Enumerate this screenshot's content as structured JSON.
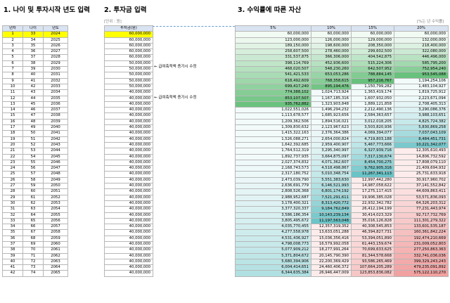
{
  "titles": {
    "section1": "1. 나이 및 투자시작 년도 입력",
    "section2": "2. 투자금 입력",
    "section3": "3. 수익률에 따른 자산"
  },
  "units": {
    "investment": "[단위 : 원]",
    "rate": "[%는 년 수익률]"
  },
  "table1": {
    "headers": [
      "년차",
      "나이",
      "년도"
    ],
    "rows": [
      [
        1,
        33,
        2024
      ],
      [
        2,
        34,
        2025
      ],
      [
        3,
        35,
        2026
      ],
      [
        4,
        36,
        2027
      ],
      [
        5,
        37,
        2028
      ],
      [
        6,
        38,
        2029
      ],
      [
        7,
        39,
        2030
      ],
      [
        8,
        40,
        2031
      ],
      [
        9,
        41,
        2032
      ],
      [
        10,
        42,
        2033
      ],
      [
        11,
        43,
        2034
      ],
      [
        12,
        44,
        2035
      ],
      [
        13,
        45,
        2036
      ],
      [
        14,
        46,
        2037
      ],
      [
        15,
        47,
        2038
      ],
      [
        16,
        48,
        2039
      ],
      [
        17,
        49,
        2040
      ],
      [
        18,
        50,
        2041
      ],
      [
        19,
        51,
        2042
      ],
      [
        20,
        52,
        2043
      ],
      [
        21,
        53,
        2044
      ],
      [
        22,
        54,
        2045
      ],
      [
        23,
        55,
        2046
      ],
      [
        24,
        56,
        2047
      ],
      [
        25,
        57,
        2048
      ],
      [
        26,
        58,
        2049
      ],
      [
        27,
        59,
        2050
      ],
      [
        28,
        60,
        2051
      ],
      [
        29,
        61,
        2052
      ],
      [
        30,
        62,
        2053
      ],
      [
        31,
        63,
        2054
      ],
      [
        32,
        64,
        2055
      ],
      [
        33,
        65,
        2056
      ],
      [
        34,
        66,
        2057
      ],
      [
        35,
        67,
        2058
      ],
      [
        36,
        68,
        2059
      ],
      [
        37,
        69,
        2060
      ],
      [
        38,
        70,
        2061
      ],
      [
        39,
        71,
        2062
      ],
      [
        40,
        72,
        2063
      ],
      [
        41,
        73,
        2064
      ],
      [
        42,
        74,
        2065
      ]
    ]
  },
  "table2": {
    "header": "투자금(원)",
    "values": [
      "60,000,000",
      "60,000,000",
      "60,000,000",
      "60,000,000",
      "60,000,000",
      "50,000,000",
      "50,000,000",
      "50,000,000",
      "50,000,000",
      "50,000,000",
      "40,000,000",
      "40,000,000",
      "40,000,000",
      "40,000,000",
      "40,000,000",
      "40,000,000",
      "40,000,000",
      "40,000,000",
      "40,000,000",
      "40,000,000",
      "40,000,000",
      "40,000,000",
      "40,000,000",
      "40,000,000",
      "40,000,000",
      "40,000,000",
      "40,000,000",
      "40,000,000",
      "40,000,000",
      "40,000,000",
      "40,000,000",
      "40,000,000",
      "40,000,000",
      "40,000,000",
      "40,000,000",
      "40,000,000",
      "40,000,000",
      "40,000,000",
      "40,000,000",
      "40,000,000",
      "40,000,000",
      "40,000,000"
    ]
  },
  "notes": {
    "note1": "← 급여축적액 증가시 수정",
    "note2": "← 급여축적액 증가시 수정"
  },
  "table3": {
    "headers": [
      "5%",
      "10%",
      "15%",
      "20%"
    ],
    "rows": [
      [
        "60,000,000",
        "60,000,000",
        "60,000,000",
        "60,000,000"
      ],
      [
        "123,000,000",
        "126,000,000",
        "129,000,000",
        "132,000,000"
      ],
      [
        "189,150,000",
        "198,600,000",
        "208,350,000",
        "218,400,000"
      ],
      [
        "258,607,500",
        "278,460,000",
        "299,602,500",
        "322,080,000"
      ],
      [
        "331,537,875",
        "366,306,000",
        "404,542,875",
        "446,496,000"
      ],
      [
        "398,114,769",
        "452,936,600",
        "515,224,306",
        "585,795,200"
      ],
      [
        "468,020,507",
        "548,230,260",
        "642,507,952",
        "752,954,240"
      ],
      [
        "541,421,533",
        "653,053,286",
        "788,884,145",
        "953,545,088"
      ],
      [
        "618,492,609",
        "768,358,615",
        "957,216,767",
        "1,194,254,106"
      ],
      [
        "699,417,240",
        "895,194,476",
        "1,150,799,282",
        "1,483,104,927"
      ],
      [
        "774,388,102",
        "1,024,713,924",
        "1,363,419,174",
        "1,819,725,912"
      ],
      [
        "853,107,507",
        "1,167,185,316",
        "1,607,932,050",
        "2,223,671,094"
      ],
      [
        "935,762,882",
        "1,323,903,848",
        "1,889,121,858",
        "2,708,405,313"
      ],
      [
        "1,022,551,026",
        "1,496,294,232",
        "2,212,490,136",
        "3,290,086,376"
      ],
      [
        "1,113,678,577",
        "1,685,923,656",
        "2,584,363,657",
        "3,988,103,651"
      ],
      [
        "1,209,362,506",
        "1,894,516,021",
        "3,012,018,205",
        "4,825,724,382"
      ],
      [
        "1,309,830,632",
        "2,123,967,623",
        "3,503,820,936",
        "5,830,869,258"
      ],
      [
        "1,415,322,163",
        "2,376,364,386",
        "4,069,394,077",
        "7,037,043,109"
      ],
      [
        "1,526,088,271",
        "2,654,000,824",
        "4,719,803,188",
        "8,484,451,731"
      ],
      [
        "1,642,392,685",
        "2,959,400,907",
        "5,467,773,666",
        "10,221,342,077"
      ],
      [
        "1,764,512,319",
        "3,295,340,997",
        "6,327,939,716",
        "12,305,610,493"
      ],
      [
        "1,892,737,935",
        "3,664,875,097",
        "7,317,130,674",
        "14,806,732,592"
      ],
      [
        "2,027,374,832",
        "4,071,362,607",
        "8,454,700,275",
        "17,808,079,110"
      ],
      [
        "2,168,743,573",
        "4,518,498,867",
        "9,762,905,316",
        "21,409,694,932"
      ],
      [
        "2,317,180,752",
        "5,010,348,754",
        "11,267,341,113",
        "25,731,633,918"
      ],
      [
        "2,473,039,790",
        "5,551,383,630",
        "12,997,442,280",
        "30,917,960,702"
      ],
      [
        "2,636,691,779",
        "6,146,521,993",
        "14,987,058,622",
        "37,141,552,842"
      ],
      [
        "2,808,526,368",
        "6,801,174,192",
        "17,275,117,415",
        "44,609,863,411"
      ],
      [
        "2,988,952,687",
        "7,521,291,611",
        "19,906,385,028",
        "53,571,836,093"
      ],
      [
        "3,178,400,321",
        "8,313,420,772",
        "22,932,342,782",
        "64,326,203,312"
      ],
      [
        "3,377,320,337",
        "9,184,762,849",
        "26,412,194,199",
        "77,231,443,974"
      ],
      [
        "3,586,186,354",
        "10,143,239,134",
        "30,414,023,329",
        "92,717,732,769"
      ],
      [
        "3,805,495,672",
        "11,197,563,048",
        "35,016,126,828",
        "111,301,279,322"
      ],
      [
        "4,035,770,455",
        "12,357,319,352",
        "40,308,545,853",
        "133,601,535,187"
      ],
      [
        "4,277,558,978",
        "13,633,051,288",
        "46,394,827,731",
        "160,361,842,224"
      ],
      [
        "4,531,436,927",
        "15,036,356,416",
        "53,394,051,890",
        "192,474,210,669"
      ],
      [
        "4,798,008,773",
        "16,579,992,058",
        "61,443,159,674",
        "231,009,052,803"
      ],
      [
        "5,077,909,212",
        "18,277,991,264",
        "70,699,633,625",
        "277,250,863,363"
      ],
      [
        "5,371,804,672",
        "20,145,790,390",
        "81,344,578,668",
        "332,741,036,036"
      ],
      [
        "5,680,394,906",
        "22,200,369,429",
        "93,586,265,469",
        "399,329,243,243"
      ],
      [
        "6,004,414,651",
        "24,460,406,372",
        "107,664,205,289",
        "479,235,091,892"
      ],
      [
        "6,344,635,384",
        "26,946,447,009",
        "123,853,836,082",
        "575,122,110,270"
      ]
    ]
  },
  "colors": {
    "header": "#d9e3f1",
    "highlight": "#ffff00",
    "green": "#61be76",
    "teal": "#5fbfc3",
    "red": "#f2a0a0"
  }
}
